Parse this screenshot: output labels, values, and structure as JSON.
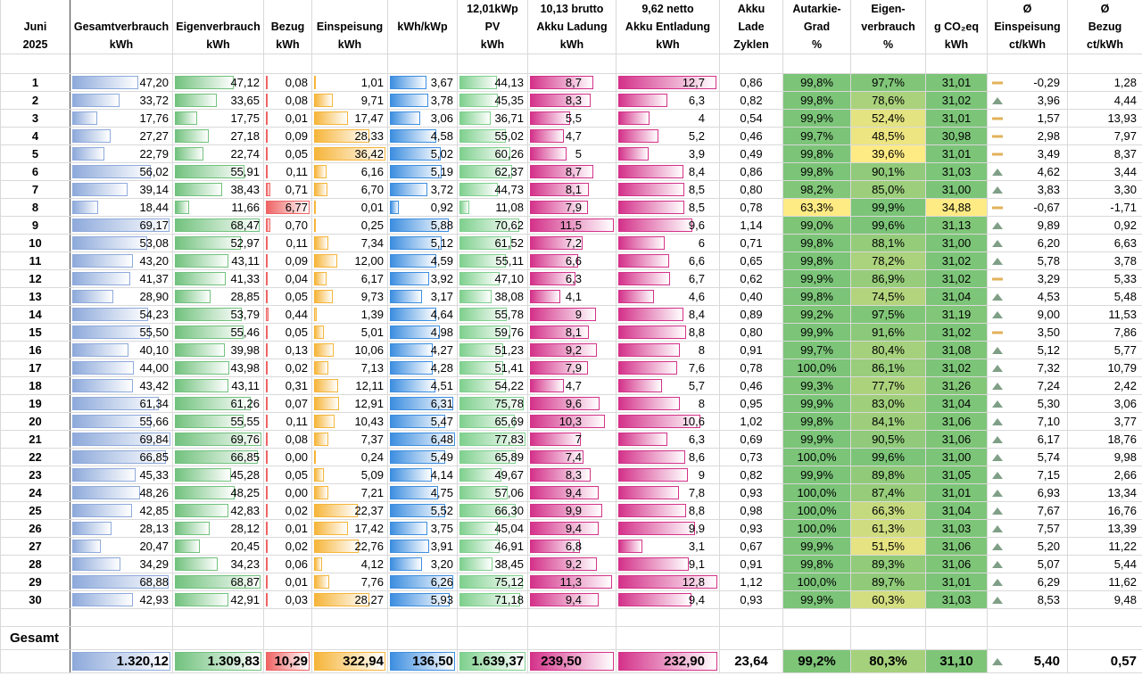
{
  "header": {
    "rows": [
      [
        null,
        null,
        null,
        null,
        null,
        null,
        "12,01kWp",
        "10,13 brutto",
        "9,62 netto",
        "Akku",
        "Autarkie-",
        "Eigen-",
        null,
        "Ø",
        "Ø"
      ],
      [
        "Juni",
        "Gesamtverbrauch",
        "Eigenverbrauch",
        "Bezug",
        "Einspeisung",
        "kWh/kWp",
        "PV",
        "Akku Ladung",
        "Akku Entladung",
        "Lade",
        "Grad",
        "verbrauch",
        "g CO₂eq",
        "Einspeisung",
        "Bezug"
      ],
      [
        "2025",
        "kWh",
        "kWh",
        "kWh",
        "kWh",
        null,
        "kWh",
        "kWh",
        "kWh",
        "Zyklen",
        "%",
        "%",
        "kWh",
        "ct/kWh",
        "ct/kWh"
      ]
    ]
  },
  "table": {
    "rows": [
      [
        "1",
        "47,20",
        "47,12",
        "0,08",
        "1,01",
        "3,67",
        "44,13",
        "8,7",
        "12,7",
        "0,86",
        "99,8%",
        "97,7%",
        "31,01",
        "-0,29",
        "1,28"
      ],
      [
        "2",
        "33,72",
        "33,65",
        "0,08",
        "9,71",
        "3,78",
        "45,35",
        "8,3",
        "6,3",
        "0,82",
        "99,8%",
        "78,6%",
        "31,02",
        "3,96",
        "4,44"
      ],
      [
        "3",
        "17,76",
        "17,75",
        "0,01",
        "17,47",
        "3,06",
        "36,71",
        "5,5",
        "4",
        "0,54",
        "99,9%",
        "52,4%",
        "31,01",
        "1,57",
        "13,93"
      ],
      [
        "4",
        "27,27",
        "27,18",
        "0,09",
        "28,33",
        "4,58",
        "55,02",
        "4,7",
        "5,2",
        "0,46",
        "99,7%",
        "48,5%",
        "30,98",
        "2,98",
        "7,97"
      ],
      [
        "5",
        "22,79",
        "22,74",
        "0,05",
        "36,42",
        "5,02",
        "60,26",
        "5",
        "3,9",
        "0,49",
        "99,8%",
        "39,6%",
        "31,01",
        "3,49",
        "8,37"
      ],
      [
        "6",
        "56,02",
        "55,91",
        "0,11",
        "6,16",
        "5,19",
        "62,37",
        "8,7",
        "8,4",
        "0,86",
        "99,8%",
        "90,1%",
        "31,03",
        "4,62",
        "3,44"
      ],
      [
        "7",
        "39,14",
        "38,43",
        "0,71",
        "6,70",
        "3,72",
        "44,73",
        "8,1",
        "8,5",
        "0,80",
        "98,2%",
        "85,0%",
        "31,00",
        "3,83",
        "3,30"
      ],
      [
        "8",
        "18,44",
        "11,66",
        "6,77",
        "0,01",
        "0,92",
        "11,08",
        "7,9",
        "8,5",
        "0,78",
        "63,3%",
        "99,9%",
        "34,88",
        "-0,67",
        "-1,71"
      ],
      [
        "9",
        "69,17",
        "68,47",
        "0,70",
        "0,25",
        "5,88",
        "70,62",
        "11,5",
        "9,6",
        "1,14",
        "99,0%",
        "99,6%",
        "31,13",
        "9,89",
        "0,92"
      ],
      [
        "10",
        "53,08",
        "52,97",
        "0,11",
        "7,34",
        "5,12",
        "61,52",
        "7,2",
        "6",
        "0,71",
        "99,8%",
        "88,1%",
        "31,00",
        "6,20",
        "6,63"
      ],
      [
        "11",
        "43,20",
        "43,11",
        "0,09",
        "12,00",
        "4,59",
        "55,11",
        "6,6",
        "6,6",
        "0,65",
        "99,8%",
        "78,2%",
        "31,02",
        "5,78",
        "3,78"
      ],
      [
        "12",
        "41,37",
        "41,33",
        "0,04",
        "6,17",
        "3,92",
        "47,10",
        "6,3",
        "6,7",
        "0,62",
        "99,9%",
        "86,9%",
        "31,02",
        "3,29",
        "5,33"
      ],
      [
        "13",
        "28,90",
        "28,85",
        "0,05",
        "9,73",
        "3,17",
        "38,08",
        "4,1",
        "4,6",
        "0,40",
        "99,8%",
        "74,5%",
        "31,04",
        "4,53",
        "5,48"
      ],
      [
        "14",
        "54,23",
        "53,79",
        "0,44",
        "1,39",
        "4,64",
        "55,78",
        "9",
        "8,4",
        "0,89",
        "99,2%",
        "97,5%",
        "31,19",
        "9,00",
        "11,53"
      ],
      [
        "15",
        "55,50",
        "55,46",
        "0,05",
        "5,01",
        "4,98",
        "59,76",
        "8,1",
        "8,8",
        "0,80",
        "99,9%",
        "91,6%",
        "31,02",
        "3,50",
        "7,86"
      ],
      [
        "16",
        "40,10",
        "39,98",
        "0,13",
        "10,06",
        "4,27",
        "51,23",
        "9,2",
        "8",
        "0,91",
        "99,7%",
        "80,4%",
        "31,08",
        "5,12",
        "5,77"
      ],
      [
        "17",
        "44,00",
        "43,98",
        "0,02",
        "7,13",
        "4,28",
        "51,41",
        "7,9",
        "7,6",
        "0,78",
        "100,0%",
        "86,1%",
        "31,02",
        "7,32",
        "10,79"
      ],
      [
        "18",
        "43,42",
        "43,11",
        "0,31",
        "12,11",
        "4,51",
        "54,22",
        "4,7",
        "5,7",
        "0,46",
        "99,3%",
        "77,7%",
        "31,26",
        "7,24",
        "2,42"
      ],
      [
        "19",
        "61,34",
        "61,26",
        "0,07",
        "12,91",
        "6,31",
        "75,78",
        "9,6",
        "8",
        "0,95",
        "99,9%",
        "83,0%",
        "31,04",
        "5,30",
        "3,06"
      ],
      [
        "20",
        "55,66",
        "55,55",
        "0,11",
        "10,43",
        "5,47",
        "65,69",
        "10,3",
        "10,6",
        "1,02",
        "99,8%",
        "84,1%",
        "31,06",
        "7,10",
        "3,77"
      ],
      [
        "21",
        "69,84",
        "69,76",
        "0,08",
        "7,37",
        "6,48",
        "77,83",
        "7",
        "6,3",
        "0,69",
        "99,9%",
        "90,5%",
        "31,06",
        "6,17",
        "18,76"
      ],
      [
        "22",
        "66,85",
        "66,85",
        "0,00",
        "0,24",
        "5,49",
        "65,89",
        "7,4",
        "8,6",
        "0,73",
        "100,0%",
        "99,6%",
        "31,00",
        "5,74",
        "9,98"
      ],
      [
        "23",
        "45,33",
        "45,28",
        "0,05",
        "5,09",
        "4,14",
        "49,67",
        "8,3",
        "9",
        "0,82",
        "99,9%",
        "89,8%",
        "31,05",
        "7,15",
        "2,66"
      ],
      [
        "24",
        "48,26",
        "48,25",
        "0,00",
        "7,21",
        "4,75",
        "57,06",
        "9,4",
        "7,8",
        "0,93",
        "100,0%",
        "87,4%",
        "31,01",
        "6,93",
        "13,34"
      ],
      [
        "25",
        "42,85",
        "42,83",
        "0,02",
        "22,37",
        "5,52",
        "66,30",
        "9,9",
        "8,8",
        "0,98",
        "100,0%",
        "66,3%",
        "31,04",
        "7,67",
        "16,76"
      ],
      [
        "26",
        "28,13",
        "28,12",
        "0,01",
        "17,42",
        "3,75",
        "45,04",
        "9,4",
        "9,9",
        "0,93",
        "100,0%",
        "61,3%",
        "31,03",
        "7,57",
        "13,39"
      ],
      [
        "27",
        "20,47",
        "20,45",
        "0,02",
        "22,76",
        "3,91",
        "46,91",
        "6,8",
        "3,1",
        "0,67",
        "99,9%",
        "51,5%",
        "31,06",
        "5,20",
        "11,22"
      ],
      [
        "28",
        "34,29",
        "34,23",
        "0,06",
        "4,12",
        "3,20",
        "38,45",
        "9,2",
        "9,1",
        "0,91",
        "99,8%",
        "89,3%",
        "31,06",
        "5,07",
        "5,44"
      ],
      [
        "29",
        "68,88",
        "68,87",
        "0,01",
        "7,76",
        "6,26",
        "75,12",
        "11,3",
        "12,8",
        "1,12",
        "100,0%",
        "89,7%",
        "31,01",
        "6,29",
        "11,62"
      ],
      [
        "30",
        "42,93",
        "42,91",
        "0,03",
        "28,27",
        "5,93",
        "71,18",
        "9,4",
        "9,4",
        "0,93",
        "99,9%",
        "60,3%",
        "31,03",
        "8,53",
        "9,48"
      ]
    ]
  },
  "total": {
    "label": "Gesamt",
    "cells": [
      null,
      "1.320,12",
      "1.309,83",
      "10,29",
      "322,94",
      "136,50",
      "1.639,37",
      "239,50",
      "232,90",
      "23,64",
      "99,2%",
      "80,3%",
      "31,10",
      "5,40",
      "0,57"
    ]
  },
  "styles": {
    "bar_colors": [
      null,
      "#8eaadb",
      "#72c27e",
      "#ef6464",
      "#f6b53a",
      "#3d8ee0",
      "#7fd08e",
      "#d4328a",
      "#d4328a"
    ],
    "trend_icons": [
      "flat",
      "up",
      "flat",
      "flat",
      "flat",
      "up",
      "up",
      "flat",
      "up",
      "up",
      "up",
      "flat",
      "up",
      "up",
      "flat",
      "up",
      "up",
      "up",
      "up",
      "up",
      "up",
      "up",
      "up",
      "up",
      "up",
      "up",
      "up",
      "up",
      "up",
      "up",
      "up"
    ]
  }
}
